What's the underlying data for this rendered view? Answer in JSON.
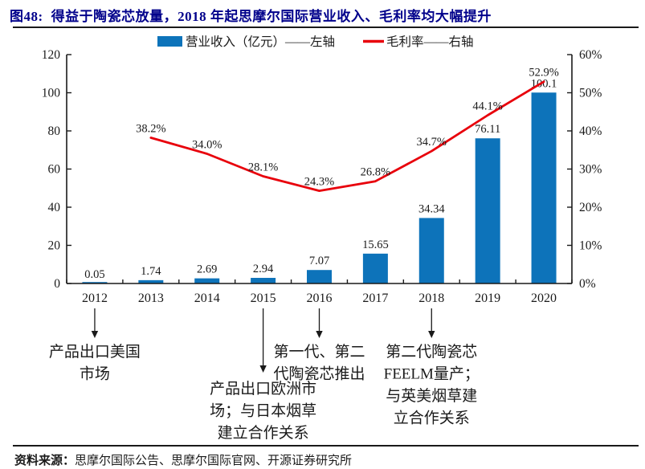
{
  "figure": {
    "title_prefix": "图48:",
    "title": "得益于陶瓷芯放量，2018 年起思摩尔国际营业收入、毛利率均大幅提升",
    "source_label": "资料来源：",
    "source_text": "思摩尔国际公告、思摩尔国际官网、开源证券研究所"
  },
  "colors": {
    "bar": "#0d73ba",
    "line": "#e8000b",
    "title": "#00008b",
    "ink": "#1a1a1a"
  },
  "chart_data": {
    "type": "bar",
    "subtype": "bar+line combo, dual axis",
    "categories": [
      "2012",
      "2013",
      "2014",
      "2015",
      "2016",
      "2017",
      "2018",
      "2019",
      "2020"
    ],
    "series": [
      {
        "name": "营业收入（亿元）——左轴",
        "type": "bar",
        "axis": "left",
        "color": "#0d73ba",
        "values": [
          0.05,
          1.74,
          2.69,
          2.94,
          7.07,
          15.65,
          34.34,
          76.11,
          100.1
        ],
        "labels": [
          "0.05",
          "1.74",
          "2.69",
          "2.94",
          "7.07",
          "15.65",
          "34.34",
          "76.11",
          "100.1"
        ]
      },
      {
        "name": "毛利率——右轴",
        "type": "line",
        "axis": "right",
        "color": "#e8000b",
        "values": [
          null,
          38.2,
          34.0,
          28.1,
          24.3,
          26.8,
          34.7,
          44.1,
          52.9
        ],
        "labels": [
          "",
          "38.2%",
          "34.0%",
          "28.1%",
          "24.3%",
          "26.8%",
          "34.7%",
          "44.1%",
          "52.9%"
        ]
      }
    ],
    "left_axis": {
      "min": 0,
      "max": 120,
      "step": 20,
      "tick_labels": [
        "0",
        "20",
        "40",
        "60",
        "80",
        "100",
        "120"
      ]
    },
    "right_axis": {
      "min": 0,
      "max": 60,
      "step": 10,
      "tick_labels": [
        "0%",
        "10%",
        "20%",
        "30%",
        "40%",
        "50%",
        "60%"
      ]
    },
    "legend_position": "top-center",
    "grid": false,
    "annotations": [
      {
        "category": "2012",
        "arrow": "short",
        "lines": [
          "产品出口美国",
          "市场"
        ]
      },
      {
        "category": "2015",
        "arrow": "long",
        "lines": [
          "产品出口欧洲市",
          "场；与日本烟草",
          "建立合作关系"
        ]
      },
      {
        "category": "2016",
        "arrow": "short",
        "lines": [
          "第一代、第二",
          "代陶瓷芯推出"
        ]
      },
      {
        "category": "2018",
        "arrow": "short",
        "lines": [
          "第二代陶瓷芯",
          "FEELM量产；",
          "与英美烟草建",
          "立合作关系"
        ]
      }
    ]
  }
}
